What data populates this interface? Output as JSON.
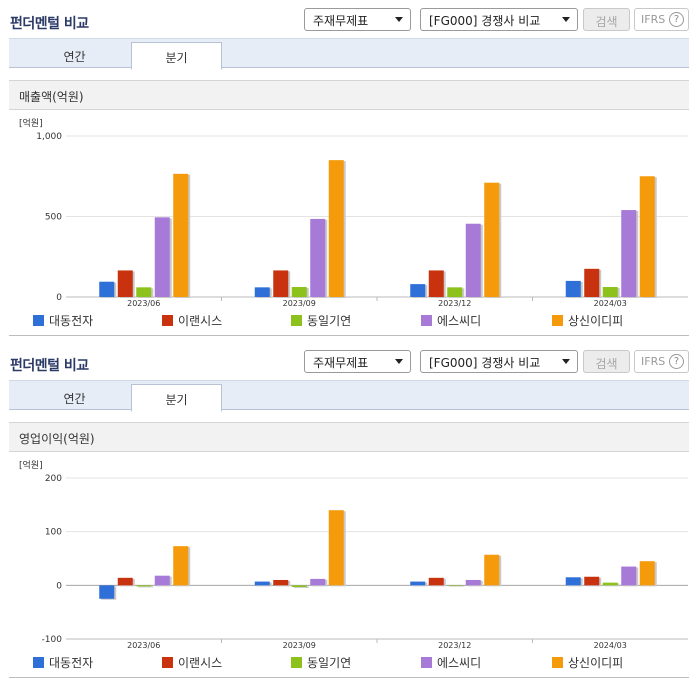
{
  "panels": [
    {
      "title": "펀더멘털 비교",
      "select1": "주재무제표",
      "select2": "[FG000] 경쟁사 비교",
      "search_label": "검색",
      "ifrs_label": "IFRS",
      "help_label": "?",
      "tabs": [
        "연간",
        "분기"
      ],
      "active_tab": "분기",
      "metric_title": "매출액(억원)",
      "unit_label": "[억원]"
    },
    {
      "title": "펀더멘털 비교",
      "select1": "주재무제표",
      "select2": "[FG000] 경쟁사 비교",
      "search_label": "검색",
      "ifrs_label": "IFRS",
      "help_label": "?",
      "tabs": [
        "연간",
        "분기"
      ],
      "active_tab": "분기",
      "metric_title": "영업이익(억원)",
      "unit_label": "[억원]"
    }
  ],
  "colors": {
    "대동전자": "#2e6fd8",
    "이랜시스": "#c8320e",
    "동일기연": "#8cc21b",
    "에스씨디": "#a77ad8",
    "상신이디피": "#f59a0b"
  },
  "chart_data": [
    {
      "type": "bar",
      "title": "매출액(억원)",
      "ylabel": "[억원]",
      "categories": [
        "2023/06",
        "2023/09",
        "2023/12",
        "2024/03"
      ],
      "ylim": [
        0,
        1000
      ],
      "yticks": [
        0,
        500,
        1000
      ],
      "ytick_labels": [
        "0",
        "500",
        "1,000"
      ],
      "grid": true,
      "legend_position": "bottom",
      "series": [
        {
          "name": "대동전자",
          "values": [
            95,
            60,
            80,
            100
          ]
        },
        {
          "name": "이랜시스",
          "values": [
            165,
            165,
            165,
            175
          ]
        },
        {
          "name": "동일기연",
          "values": [
            60,
            62,
            60,
            62
          ]
        },
        {
          "name": "에스씨디",
          "values": [
            495,
            485,
            455,
            540
          ]
        },
        {
          "name": "상신이디피",
          "values": [
            765,
            850,
            710,
            750
          ]
        }
      ]
    },
    {
      "type": "bar",
      "title": "영업이익(억원)",
      "ylabel": "[억원]",
      "categories": [
        "2023/06",
        "2023/09",
        "2023/12",
        "2024/03"
      ],
      "ylim": [
        -100,
        200
      ],
      "yticks": [
        -100,
        0,
        100,
        200
      ],
      "ytick_labels": [
        "-100",
        "0",
        "100",
        "200"
      ],
      "grid": true,
      "legend_position": "bottom",
      "series": [
        {
          "name": "대동전자",
          "values": [
            -25,
            7,
            7,
            15
          ]
        },
        {
          "name": "이랜시스",
          "values": [
            14,
            10,
            14,
            16
          ]
        },
        {
          "name": "동일기연",
          "values": [
            -2,
            -3,
            -1,
            5
          ]
        },
        {
          "name": "에스씨디",
          "values": [
            18,
            12,
            10,
            35
          ]
        },
        {
          "name": "상신이디피",
          "values": [
            73,
            140,
            57,
            45
          ]
        }
      ]
    }
  ]
}
